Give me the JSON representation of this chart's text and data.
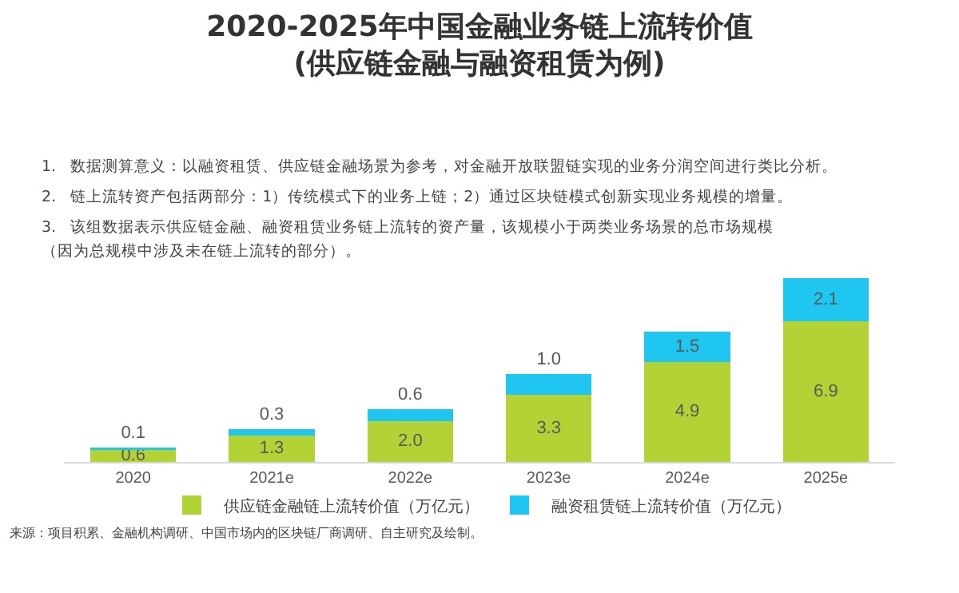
{
  "chart_data": {
    "type": "bar",
    "stacked": true,
    "title": "2020-2025年中国金融业务链上流转价值\n(供应链金融与融资租赁为例)",
    "categories": [
      "2020",
      "2021e",
      "2022e",
      "2023e",
      "2024e",
      "2025e"
    ],
    "series": [
      {
        "name": "供应链金融链上流转价值（万亿元）",
        "color": "#b2d235",
        "values": [
          0.6,
          1.3,
          2.0,
          3.3,
          4.9,
          6.9
        ],
        "value_labels": [
          "0.6",
          "1.3",
          "2.0",
          "3.3",
          "4.9",
          "6.9"
        ]
      },
      {
        "name": "融资租赁链上流转价值（万亿元）",
        "color": "#1fc6f0",
        "values": [
          0.1,
          0.3,
          0.6,
          1.0,
          1.5,
          2.1
        ],
        "value_labels": [
          "0.1",
          "0.3",
          "0.6",
          "1.0",
          "1.5",
          "2.1"
        ]
      }
    ],
    "tick_labels": "x",
    "legend": "bottom",
    "annotations": [
      "1.   数据测算意义：以融资租赁、供应链金融场景为参考，对金融开放联盟链实现的业务分润空间进行类比分析。",
      "2.   链上流转资产包括两部分：1）传统模式下的业务上链；2）通过区块链模式创新实现业务规模的增量。",
      "3.   该组数据表示供应链金融、融资租赁业务链上流转的资产量，该规模小于两类业务场景的总市场规模",
      "（因为总规模中涉及未在链上流转的部分）。",
      "来源：项目积累、金融机构调研、中国市场内的区块链厂商调研、自主研究及绘制。"
    ]
  }
}
